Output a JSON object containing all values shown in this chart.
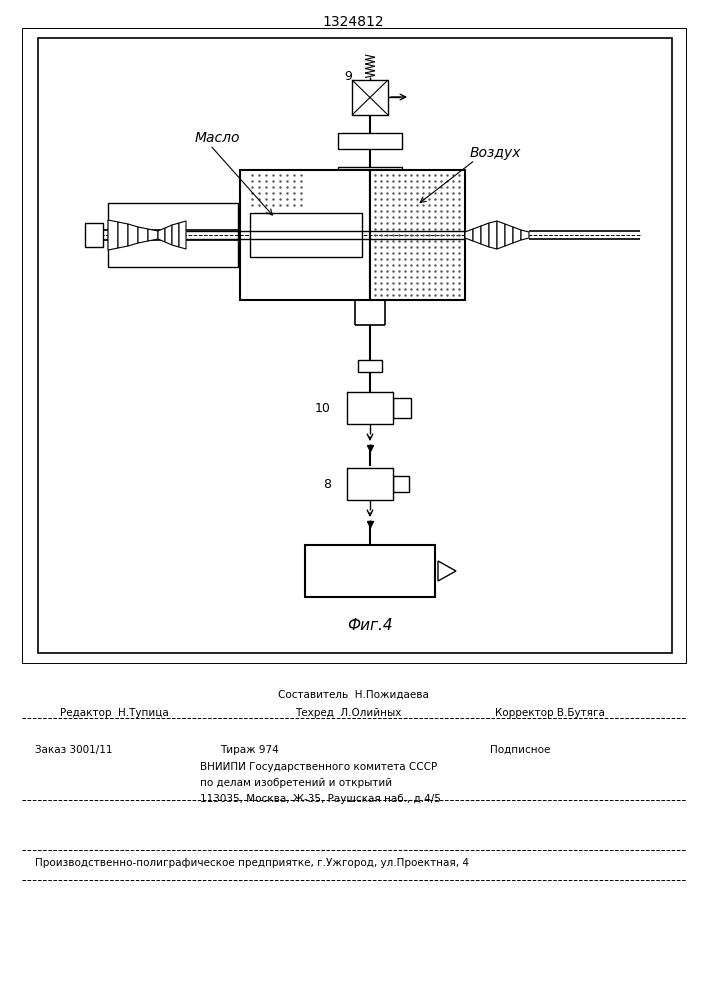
{
  "title": "1324812",
  "fig_label": "Фиг.4",
  "background": "#ffffff",
  "line_color": "#000000",
  "label_maslo": "Масло",
  "label_vozduh": "Воздух",
  "label_9": "9",
  "label_10": "10",
  "label_8": "8",
  "footer_editor": "Редактор  Н.Тупица",
  "footer_composer": "Составитель  Н.Пожидаева",
  "footer_techred": "Техред  Л.Олийных",
  "footer_corrector": "Корректор В.Бутяга",
  "footer_zakaz": "Заказ 3001/11",
  "footer_tirazh": "Тираж 974",
  "footer_podpisnoe": "Подписное",
  "footer_vniiipi": "ВНИИПИ Государственного комитета СССР",
  "footer_po_delam": "по делам изобретений и открытий",
  "footer_address": "113035, Москва, Ж-35, Раушская наб., д.4/5",
  "footer_predpriyatie": "Производственно-полиграфическое предприятке, г.Ужгород, ул.Проектная, 4"
}
